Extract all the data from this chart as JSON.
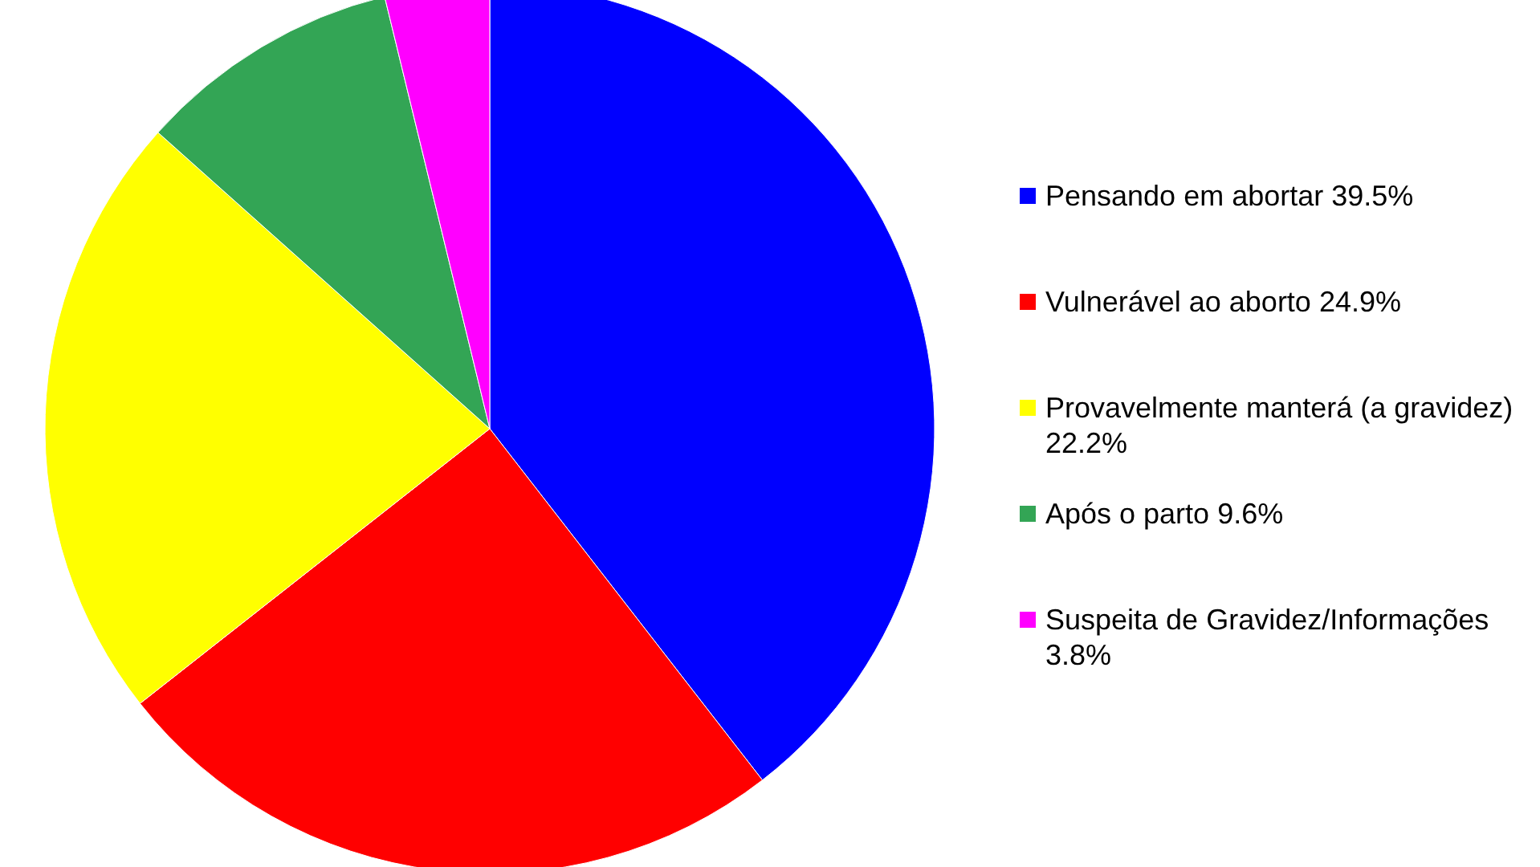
{
  "chart_data": {
    "type": "pie",
    "categories": [
      "Pensando em abortar 39.5%",
      "Vulnerável ao aborto 24.9%",
      "Provavelmente manterá (a gravidez) 22.2%",
      "Após o parto 9.6%",
      "Suspeita de Gravidez/Informações 3.8%"
    ],
    "values": [
      39.5,
      24.9,
      22.2,
      9.6,
      3.8
    ],
    "colors": [
      "#0000ff",
      "#ff0000",
      "#ffff00",
      "#33a555",
      "#ff00ff"
    ],
    "legend": "right"
  }
}
